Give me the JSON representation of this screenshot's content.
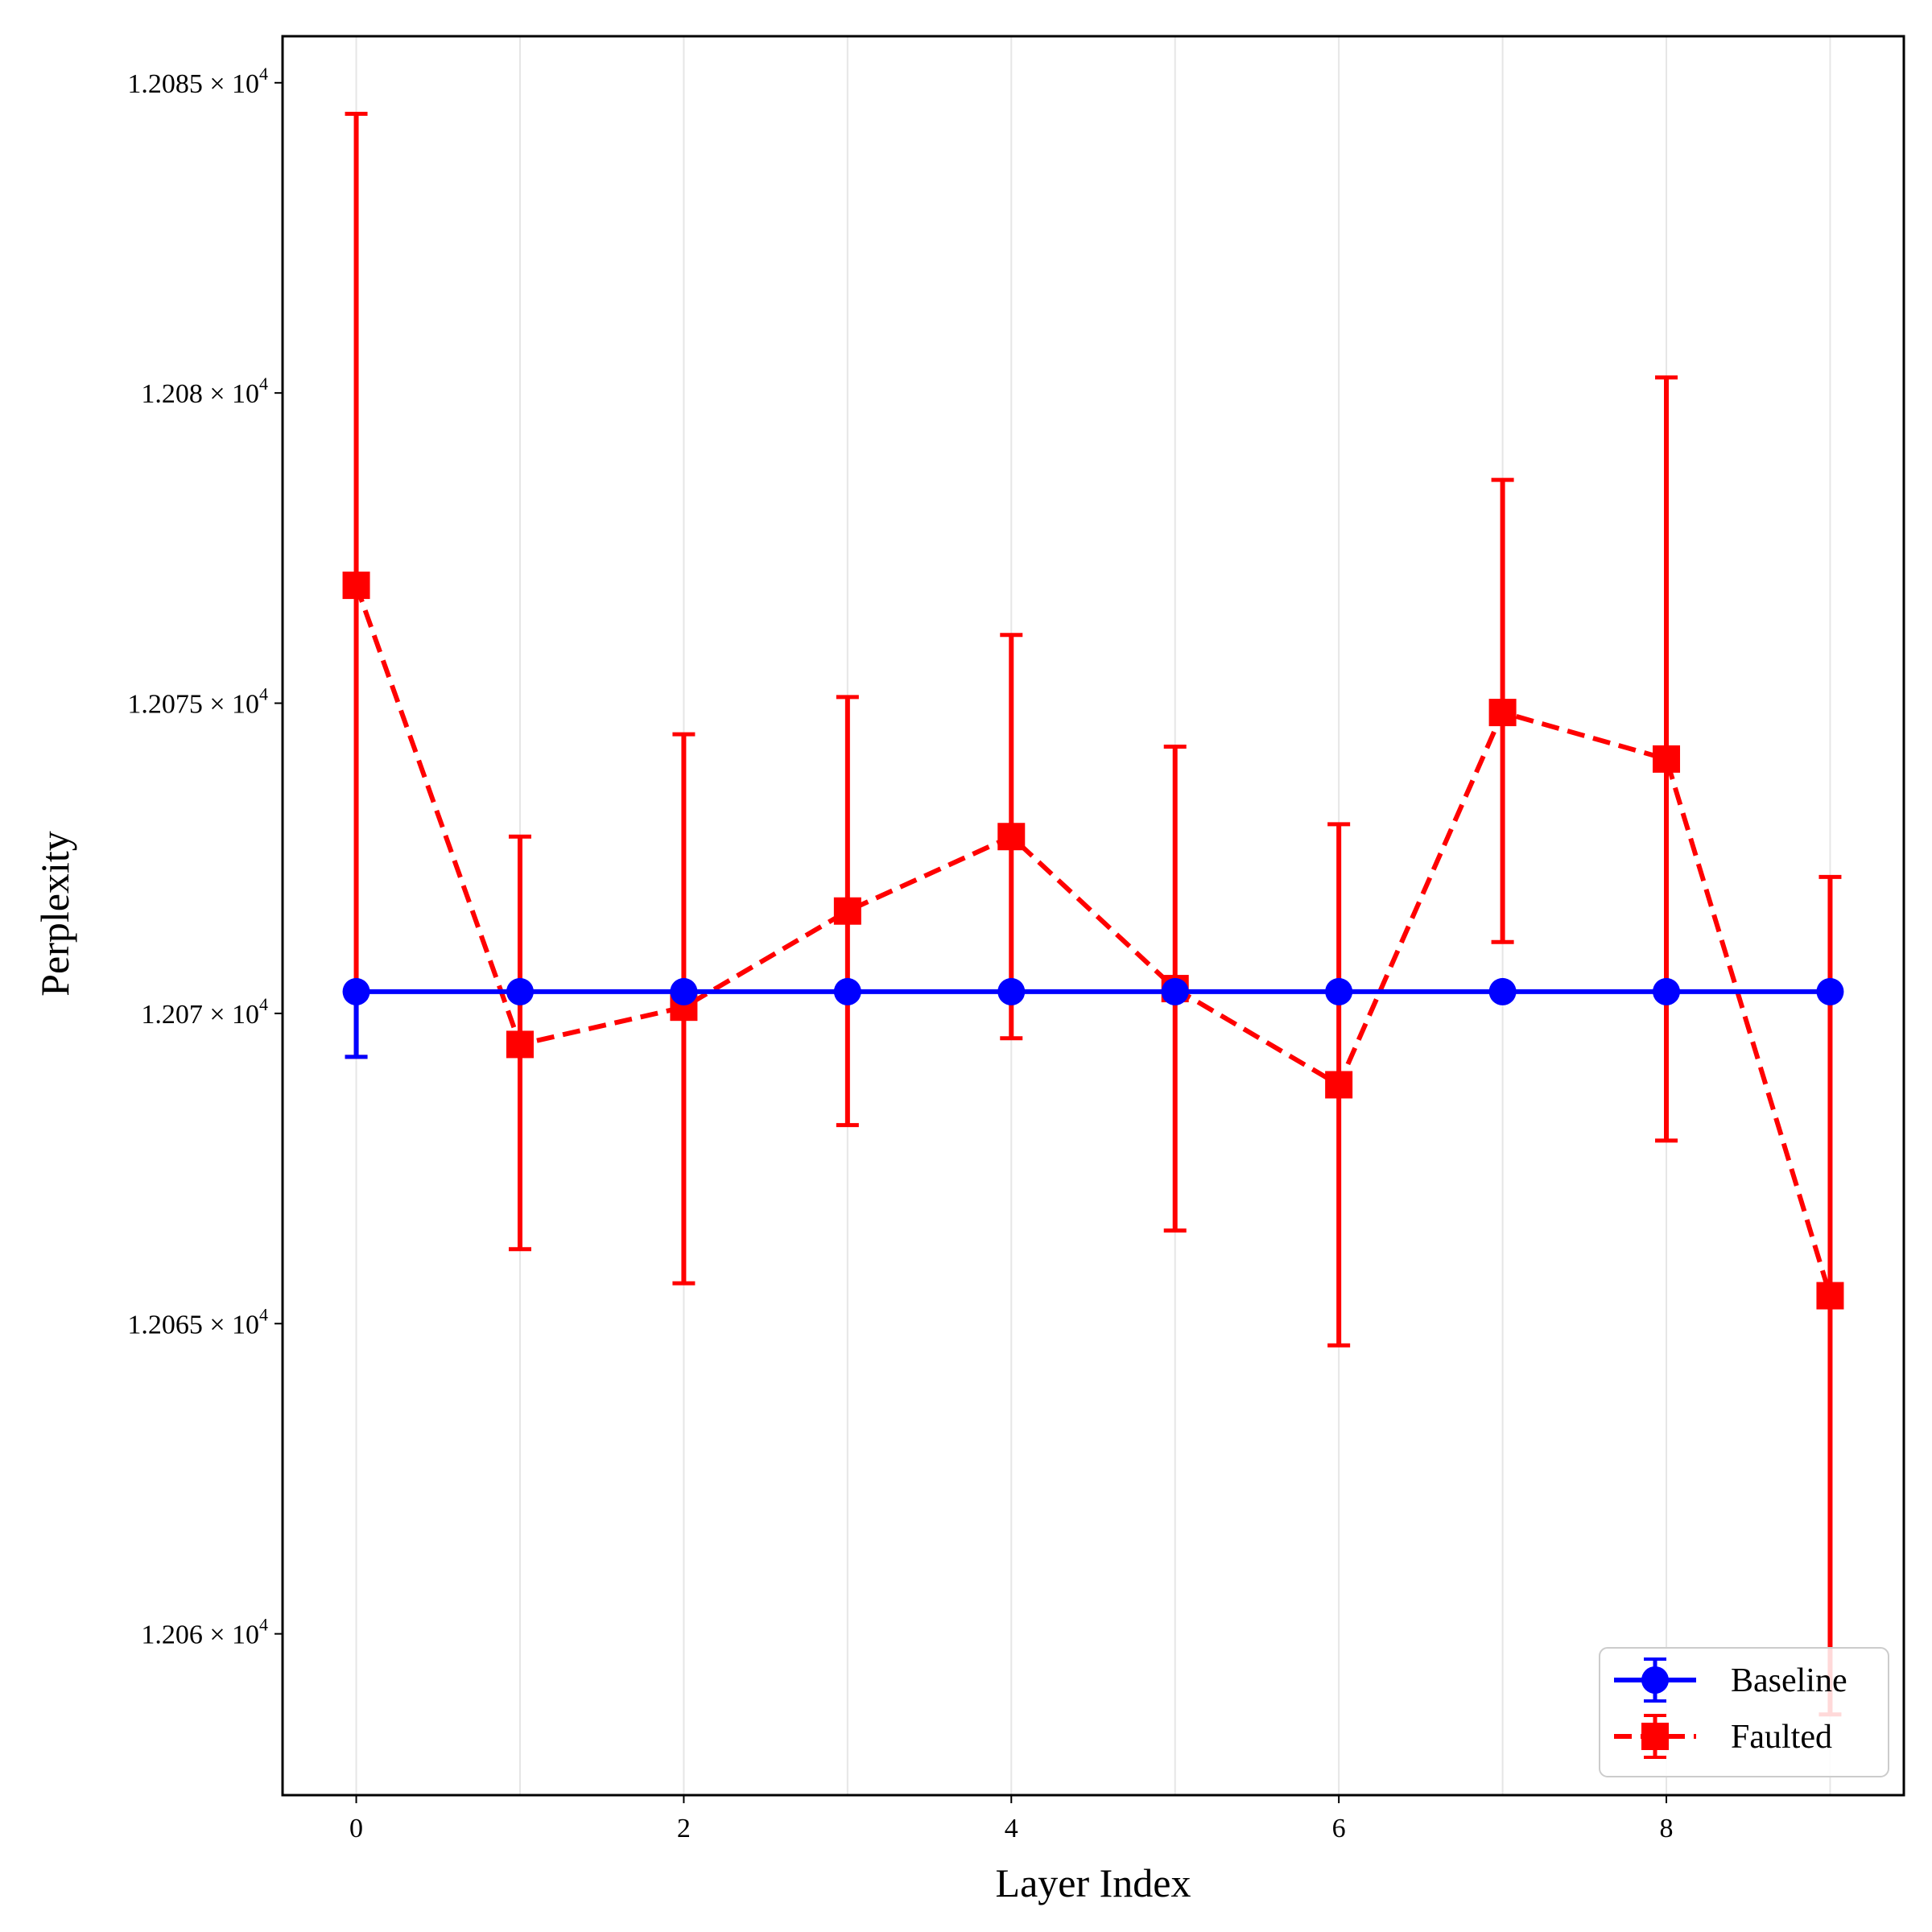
{
  "chart_data": {
    "type": "line",
    "title": "",
    "xlabel": "Layer Index",
    "ylabel": "Perplexity",
    "x": [
      0,
      1,
      2,
      3,
      4,
      5,
      6,
      7,
      8,
      9
    ],
    "xlim": [
      -0.45,
      9.45
    ],
    "ylim": [
      12057.4,
      12085.75
    ],
    "x_ticks": [
      0,
      2,
      4,
      6,
      8
    ],
    "y_ticks": [
      {
        "value": 12060,
        "mantissa": "1.206",
        "exponent": "4"
      },
      {
        "value": 12065,
        "mantissa": "1.2065",
        "exponent": "4"
      },
      {
        "value": 12070,
        "mantissa": "1.207",
        "exponent": "4"
      },
      {
        "value": 12075,
        "mantissa": "1.2075",
        "exponent": "4"
      },
      {
        "value": 12080,
        "mantissa": "1.208",
        "exponent": "4"
      },
      {
        "value": 12085,
        "mantissa": "1.2085",
        "exponent": "4"
      }
    ],
    "grid": "vertical",
    "legend_position": "lower-right",
    "series": [
      {
        "name": "Baseline",
        "color": "#0000ff",
        "marker": "circle",
        "line_style": "solid",
        "values": [
          12070.35,
          12070.35,
          12070.35,
          12070.35,
          12070.35,
          12070.35,
          12070.35,
          12070.35,
          12070.35,
          12070.35
        ],
        "err_low": [
          12069.3,
          null,
          null,
          null,
          null,
          null,
          null,
          null,
          null,
          null
        ],
        "err_high": [
          12070.35,
          null,
          null,
          null,
          null,
          null,
          null,
          null,
          null,
          null
        ]
      },
      {
        "name": "Faulted",
        "color": "#ff0000",
        "marker": "square",
        "line_style": "dashed",
        "values": [
          12076.9,
          12069.5,
          12070.1,
          12071.65,
          12072.85,
          12070.4,
          12068.85,
          12074.85,
          12074.1,
          12065.45
        ],
        "err_low": [
          12069.3,
          12066.2,
          12065.65,
          12068.2,
          12069.6,
          12066.5,
          12064.65,
          12071.15,
          12067.95,
          12058.7
        ],
        "err_high": [
          12084.5,
          12072.85,
          12074.5,
          12075.1,
          12076.1,
          12074.3,
          12073.05,
          12078.6,
          12080.25,
          12072.2
        ]
      }
    ]
  }
}
